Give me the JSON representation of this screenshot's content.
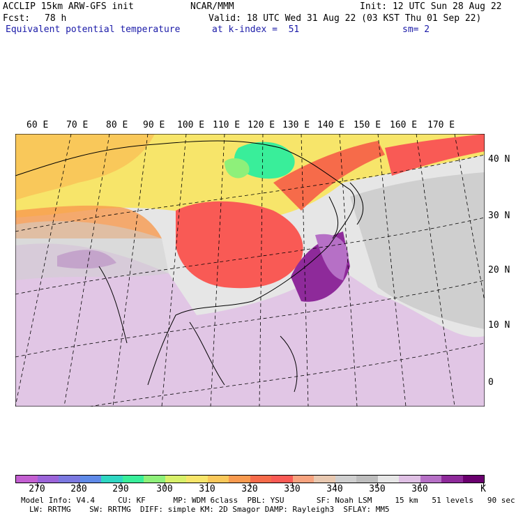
{
  "header": {
    "model": "ACCLIP 15km ARW-GFS init",
    "org": "NCAR/MMM",
    "init": "Init: 12 UTC Sun 28 Aug 22",
    "fcst_label": "Fcst:",
    "fcst_value": "78 h",
    "valid": "Valid: 18 UTC Wed 31 Aug 22 (03 KST Thu 01 Sep 22)",
    "field": "Equivalent potential temperature",
    "level": "at k-index =  51",
    "smooth": "sm= 2"
  },
  "map": {
    "lon_labels": [
      "60 E",
      "70 E",
      "80 E",
      "90 E",
      "100 E",
      "110 E",
      "120 E",
      "130 E",
      "140 E",
      "150 E",
      "160 E",
      "170 E"
    ],
    "lat_labels": [
      "40 N",
      "30 N",
      "20 N",
      "10 N",
      "0"
    ]
  },
  "colorbar": {
    "labels": [
      "270",
      "280",
      "290",
      "300",
      "310",
      "320",
      "330",
      "340",
      "350",
      "360",
      "K"
    ],
    "colors": [
      "#c35fd1",
      "#9b64d9",
      "#7b78e0",
      "#5f8ae8",
      "#2fd6c2",
      "#39ee9a",
      "#8ef07a",
      "#d8f06a",
      "#f7e56a",
      "#f9c85a",
      "#f89a4f",
      "#f66b4a",
      "#f95a55",
      "#f7a37f",
      "#e8c8b0",
      "#cfcfcf",
      "#bdbdbd",
      "#e6e6e6",
      "#dfc0e4",
      "#b670c6",
      "#8e2a9a",
      "#6a006e"
    ]
  },
  "footer": {
    "line1": "Model Info: V4.4     CU: KF      MP: WDM 6class  PBL: YSU       SF: Noah LSM     15 km   51 levels   90 sec",
    "line2": "LW: RRTMG    SW: RRTMG  DIFF: simple KM: 2D Smagor DAMP: Rayleigh3  SFLAY: MM5"
  }
}
